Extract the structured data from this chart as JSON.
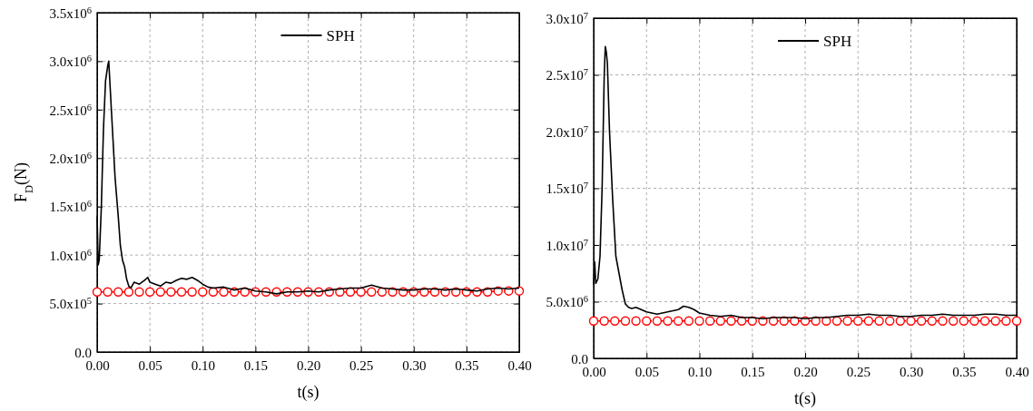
{
  "chart_data": [
    {
      "type": "line",
      "xlabel": "t(s)",
      "ylabel": "F$_{D}$(N)",
      "xlim": [
        0,
        0.4
      ],
      "ylim": [
        0,
        3500000
      ],
      "xticks": [
        {
          "value": 0,
          "label": "0.00"
        },
        {
          "value": 0.05,
          "label": "0.05"
        },
        {
          "value": 0.1,
          "label": "0.10"
        },
        {
          "value": 0.15,
          "label": "0.15"
        },
        {
          "value": 0.2,
          "label": "0.20"
        },
        {
          "value": 0.25,
          "label": "0.25"
        },
        {
          "value": 0.3,
          "label": "0.30"
        },
        {
          "value": 0.35,
          "label": "0.35"
        },
        {
          "value": 0.4,
          "label": "0.40"
        }
      ],
      "yticks": [
        {
          "value": 0,
          "label": "0.0"
        },
        {
          "value": 500000,
          "label": "5.0x10$^{5}$"
        },
        {
          "value": 1000000,
          "label": "1.0x10$^{6}$"
        },
        {
          "value": 1500000,
          "label": "1.5x10$^{6}$"
        },
        {
          "value": 2000000,
          "label": "2.0x10$^{6}$"
        },
        {
          "value": 2500000,
          "label": "2.5x10$^{6}$"
        },
        {
          "value": 3000000,
          "label": "3.0x10$^{6}$"
        },
        {
          "value": 3500000,
          "label": "3.5x10$^{6}$"
        }
      ],
      "grid": true,
      "legend": "top",
      "series": [
        {
          "name": "SPH",
          "color": "#000000",
          "marker": "none",
          "line_style": "solid",
          "x": [
            0,
            0.001,
            0.002,
            0.004,
            0.006,
            0.008,
            0.01,
            0.011,
            0.012,
            0.013,
            0.015,
            0.017,
            0.02,
            0.022,
            0.024,
            0.026,
            0.028,
            0.03,
            0.032,
            0.035,
            0.04,
            0.045,
            0.048,
            0.05,
            0.055,
            0.06,
            0.065,
            0.07,
            0.075,
            0.08,
            0.085,
            0.09,
            0.095,
            0.1,
            0.105,
            0.11,
            0.12,
            0.13,
            0.14,
            0.15,
            0.16,
            0.17,
            0.18,
            0.19,
            0.2,
            0.21,
            0.22,
            0.23,
            0.24,
            0.25,
            0.26,
            0.27,
            0.28,
            0.29,
            0.3,
            0.31,
            0.32,
            0.33,
            0.34,
            0.35,
            0.36,
            0.37,
            0.38,
            0.39,
            0.4
          ],
          "values": [
            1400000,
            900000,
            950000,
            1500000,
            2300000,
            2800000,
            2950000,
            3000000,
            2800000,
            2600000,
            2200000,
            1800000,
            1400000,
            1100000,
            950000,
            880000,
            750000,
            680000,
            660000,
            720000,
            700000,
            740000,
            770000,
            720000,
            700000,
            680000,
            720000,
            710000,
            740000,
            760000,
            750000,
            770000,
            740000,
            700000,
            670000,
            660000,
            670000,
            640000,
            660000,
            630000,
            620000,
            600000,
            620000,
            620000,
            630000,
            620000,
            640000,
            650000,
            660000,
            660000,
            690000,
            660000,
            650000,
            640000,
            640000,
            650000,
            650000,
            640000,
            650000,
            640000,
            630000,
            650000,
            660000,
            650000,
            660000
          ]
        },
        {
          "color": "#ff0000",
          "marker": "circle",
          "line_style": "dashed",
          "x": [
            0,
            0.01,
            0.02,
            0.03,
            0.04,
            0.05,
            0.06,
            0.07,
            0.08,
            0.09,
            0.1,
            0.11,
            0.12,
            0.13,
            0.14,
            0.15,
            0.16,
            0.17,
            0.18,
            0.19,
            0.2,
            0.21,
            0.22,
            0.23,
            0.24,
            0.25,
            0.26,
            0.27,
            0.28,
            0.29,
            0.3,
            0.31,
            0.32,
            0.33,
            0.34,
            0.35,
            0.36,
            0.37,
            0.38,
            0.39,
            0.4
          ],
          "values": [
            620000,
            620000,
            620000,
            620000,
            620000,
            620000,
            620000,
            620000,
            620000,
            620000,
            620000,
            620000,
            620000,
            620000,
            620000,
            620000,
            620000,
            620000,
            620000,
            620000,
            620000,
            620000,
            620000,
            620000,
            620000,
            620000,
            620000,
            620000,
            620000,
            620000,
            620000,
            620000,
            620000,
            620000,
            620000,
            620000,
            620000,
            620000,
            630000,
            630000,
            630000
          ]
        }
      ]
    },
    {
      "type": "line",
      "xlabel": "t(s)",
      "xlim": [
        0,
        0.4
      ],
      "ylim": [
        0,
        30000000
      ],
      "xticks": [
        {
          "value": 0,
          "label": "0.00"
        },
        {
          "value": 0.05,
          "label": "0.05"
        },
        {
          "value": 0.1,
          "label": "0.10"
        },
        {
          "value": 0.15,
          "label": "0.15"
        },
        {
          "value": 0.2,
          "label": "0.20"
        },
        {
          "value": 0.25,
          "label": "0.25"
        },
        {
          "value": 0.3,
          "label": "0.30"
        },
        {
          "value": 0.35,
          "label": "0.35"
        },
        {
          "value": 0.4,
          "label": "0.40"
        }
      ],
      "yticks": [
        {
          "value": 0,
          "label": "0.0"
        },
        {
          "value": 5000000,
          "label": "5.0x10$^{6}$"
        },
        {
          "value": 10000000,
          "label": "1.0x10$^{7}$"
        },
        {
          "value": 15000000,
          "label": "1.5x10$^{7}$"
        },
        {
          "value": 20000000,
          "label": "2.0x10$^{7}$"
        },
        {
          "value": 25000000,
          "label": "2.5x10$^{7}$"
        },
        {
          "value": 30000000,
          "label": "3.0x10$^{7}$"
        }
      ],
      "grid": true,
      "legend": "top",
      "series": [
        {
          "name": "SPH",
          "color": "#000000",
          "marker": "none",
          "line_style": "solid",
          "x": [
            0,
            0.001,
            0.002,
            0.004,
            0.006,
            0.008,
            0.01,
            0.011,
            0.012,
            0.013,
            0.015,
            0.018,
            0.021,
            0.024,
            0.027,
            0.03,
            0.033,
            0.036,
            0.04,
            0.045,
            0.05,
            0.055,
            0.06,
            0.065,
            0.07,
            0.075,
            0.08,
            0.085,
            0.09,
            0.095,
            0.1,
            0.105,
            0.11,
            0.12,
            0.13,
            0.14,
            0.15,
            0.16,
            0.17,
            0.18,
            0.19,
            0.2,
            0.21,
            0.22,
            0.23,
            0.24,
            0.25,
            0.26,
            0.27,
            0.28,
            0.29,
            0.3,
            0.31,
            0.32,
            0.33,
            0.34,
            0.35,
            0.36,
            0.37,
            0.38,
            0.39,
            0.4
          ],
          "values": [
            6500000,
            8500000,
            6600000,
            7000000,
            9000000,
            15000000,
            25000000,
            27500000,
            27000000,
            26000000,
            20000000,
            14000000,
            9000000,
            7500000,
            6000000,
            4800000,
            4500000,
            4400000,
            4500000,
            4300000,
            4100000,
            4000000,
            3900000,
            4000000,
            4100000,
            4200000,
            4300000,
            4600000,
            4500000,
            4300000,
            4000000,
            3900000,
            3800000,
            3700000,
            3800000,
            3600000,
            3600000,
            3500000,
            3600000,
            3600000,
            3600000,
            3500000,
            3600000,
            3600000,
            3700000,
            3800000,
            3800000,
            3900000,
            3800000,
            3800000,
            3700000,
            3700000,
            3800000,
            3800000,
            3900000,
            3800000,
            3800000,
            3800000,
            3900000,
            3900000,
            3800000,
            3800000
          ]
        },
        {
          "color": "#ff0000",
          "marker": "circle",
          "line_style": "dashed",
          "x": [
            0,
            0.01,
            0.02,
            0.03,
            0.04,
            0.05,
            0.06,
            0.07,
            0.08,
            0.09,
            0.1,
            0.11,
            0.12,
            0.13,
            0.14,
            0.15,
            0.16,
            0.17,
            0.18,
            0.19,
            0.2,
            0.21,
            0.22,
            0.23,
            0.24,
            0.25,
            0.26,
            0.27,
            0.28,
            0.29,
            0.3,
            0.31,
            0.32,
            0.33,
            0.34,
            0.35,
            0.36,
            0.37,
            0.38,
            0.39,
            0.4
          ],
          "values": [
            3300000,
            3300000,
            3300000,
            3300000,
            3300000,
            3300000,
            3300000,
            3300000,
            3300000,
            3300000,
            3300000,
            3300000,
            3300000,
            3300000,
            3300000,
            3300000,
            3300000,
            3300000,
            3300000,
            3300000,
            3300000,
            3300000,
            3300000,
            3300000,
            3300000,
            3300000,
            3300000,
            3300000,
            3300000,
            3300000,
            3300000,
            3300000,
            3300000,
            3300000,
            3300000,
            3300000,
            3300000,
            3300000,
            3300000,
            3300000,
            3300000
          ]
        }
      ]
    }
  ]
}
